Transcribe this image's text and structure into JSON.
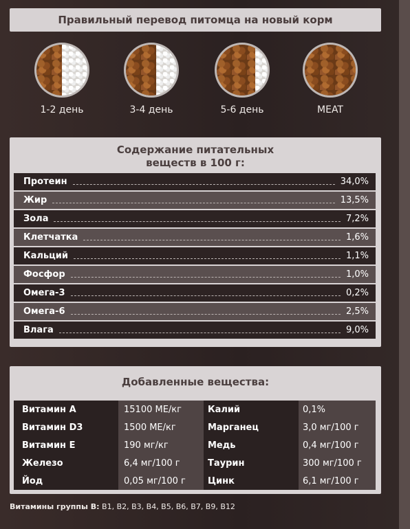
{
  "header": {
    "title": "Правильный перевод питомца на новый корм"
  },
  "transition": [
    {
      "label": "1-2 день",
      "food_share": 0.5
    },
    {
      "label": "3-4 день",
      "food_share": 0.6
    },
    {
      "label": "5-6 день",
      "food_share": 0.75
    },
    {
      "label": "MEAT",
      "food_share": 1.0
    }
  ],
  "nutrients": {
    "title_line1": "Содержание питательных",
    "title_line2": "веществ в 100 г:",
    "rows": [
      {
        "name": "Протеин",
        "value": "34,0%"
      },
      {
        "name": "Жир",
        "value": "13,5%"
      },
      {
        "name": "Зола",
        "value": "7,2%"
      },
      {
        "name": "Клетчатка",
        "value": "1,6%"
      },
      {
        "name": "Кальций",
        "value": "1,1%"
      },
      {
        "name": "Фосфор",
        "value": "1,0%"
      },
      {
        "name": "Омега-3",
        "value": "0,2%"
      },
      {
        "name": "Омега-6",
        "value": "2,5%"
      },
      {
        "name": "Влага",
        "value": "9,0%"
      }
    ]
  },
  "additives": {
    "title": "Добавленные вещества:",
    "rows": [
      {
        "name1": "Витамин А",
        "val1": "15100 МЕ/кг",
        "name2": "Калий",
        "val2": "0,1%"
      },
      {
        "name1": "Витамин D3",
        "val1": "1500 МЕ/кг",
        "name2": "Марганец",
        "val2": "3,0 мг/100 г"
      },
      {
        "name1": "Витамин Е",
        "val1": "190 мг/кг",
        "name2": "Медь",
        "val2": "0,4 мг/100 г"
      },
      {
        "name1": "Железо",
        "val1": "6,4 мг/100 г",
        "name2": "Таурин",
        "val2": "300 мг/100 г"
      },
      {
        "name1": "Йод",
        "val1": "0,05 мг/100 г",
        "name2": "Цинк",
        "val2": "6,1 мг/100 г"
      }
    ]
  },
  "footnote": {
    "label": "Витамины группы В:",
    "value": " В1, В2, В3, В4, В5, В6, В7, В9, В12"
  }
}
